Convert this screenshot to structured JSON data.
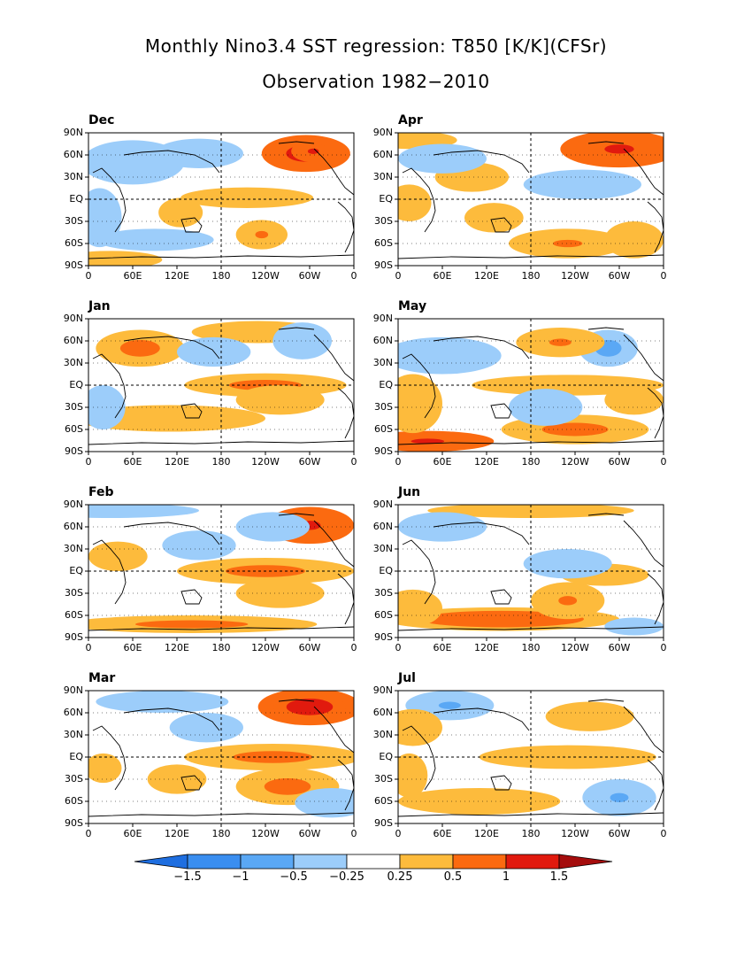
{
  "title_line1": "Monthly Nino3.4 SST regression: T850 [K/K](CFSr)",
  "title_line2": "Observation 1982−2010",
  "chart_data": {
    "type": "heatmap",
    "variable": "T850",
    "units": "K/K",
    "lat_ticks": [
      "90N",
      "60N",
      "30N",
      "EQ",
      "30S",
      "60S",
      "90S"
    ],
    "lon_ticks": [
      "0",
      "60E",
      "120E",
      "180",
      "120W",
      "60W",
      "0"
    ],
    "panels": [
      {
        "label": "Dec",
        "col": 0,
        "row": 0,
        "features": [
          {
            "lon": 295,
            "lat": 62,
            "w": 60,
            "h": 25,
            "v": 1.6
          },
          {
            "lon": 305,
            "lat": 65,
            "w": 30,
            "h": 15,
            "v": 1.2
          },
          {
            "lon": 215,
            "lat": 2,
            "w": 90,
            "h": 14,
            "v": 0.35
          },
          {
            "lon": 235,
            "lat": -48,
            "w": 35,
            "h": 20,
            "v": 0.6
          },
          {
            "lon": 125,
            "lat": -18,
            "w": 30,
            "h": 20,
            "v": 0.4
          },
          {
            "lon": 30,
            "lat": -82,
            "w": 70,
            "h": 12,
            "v": 0.4
          },
          {
            "lon": 60,
            "lat": 50,
            "w": 70,
            "h": 30,
            "v": -0.4
          },
          {
            "lon": 150,
            "lat": 62,
            "w": 60,
            "h": 20,
            "v": -0.3
          },
          {
            "lon": 15,
            "lat": -25,
            "w": 30,
            "h": 40,
            "v": -0.3
          },
          {
            "lon": 90,
            "lat": -55,
            "w": 80,
            "h": 15,
            "v": -0.3
          }
        ]
      },
      {
        "label": "Jan",
        "col": 0,
        "row": 1,
        "features": [
          {
            "lon": 70,
            "lat": 50,
            "w": 60,
            "h": 25,
            "v": 0.7
          },
          {
            "lon": 230,
            "lat": 72,
            "w": 90,
            "h": 15,
            "v": 0.4
          },
          {
            "lon": 240,
            "lat": 0,
            "w": 110,
            "h": 16,
            "v": 0.7
          },
          {
            "lon": 260,
            "lat": -20,
            "w": 60,
            "h": 20,
            "v": 0.4
          },
          {
            "lon": 110,
            "lat": -45,
            "w": 130,
            "h": 18,
            "v": 0.35
          },
          {
            "lon": 290,
            "lat": 60,
            "w": 40,
            "h": 25,
            "v": -0.4
          },
          {
            "lon": 170,
            "lat": 45,
            "w": 50,
            "h": 20,
            "v": -0.3
          },
          {
            "lon": 20,
            "lat": -30,
            "w": 30,
            "h": 30,
            "v": -0.3
          }
        ]
      },
      {
        "label": "Feb",
        "col": 0,
        "row": 2,
        "features": [
          {
            "lon": 300,
            "lat": 62,
            "w": 60,
            "h": 25,
            "v": 1.2
          },
          {
            "lon": 240,
            "lat": 0,
            "w": 120,
            "h": 18,
            "v": 0.7
          },
          {
            "lon": 260,
            "lat": -30,
            "w": 60,
            "h": 20,
            "v": 0.5
          },
          {
            "lon": 140,
            "lat": -72,
            "w": 170,
            "h": 12,
            "v": 0.7
          },
          {
            "lon": 40,
            "lat": 20,
            "w": 40,
            "h": 20,
            "v": 0.3
          },
          {
            "lon": 30,
            "lat": 82,
            "w": 120,
            "h": 10,
            "v": -0.5
          },
          {
            "lon": 250,
            "lat": 60,
            "w": 50,
            "h": 20,
            "v": -0.4
          },
          {
            "lon": 150,
            "lat": 35,
            "w": 50,
            "h": 20,
            "v": -0.3
          }
        ]
      },
      {
        "label": "Mar",
        "col": 0,
        "row": 3,
        "features": [
          {
            "lon": 300,
            "lat": 68,
            "w": 70,
            "h": 25,
            "v": 1.4
          },
          {
            "lon": 250,
            "lat": 0,
            "w": 120,
            "h": 18,
            "v": 0.7
          },
          {
            "lon": 270,
            "lat": -40,
            "w": 70,
            "h": 25,
            "v": 0.7
          },
          {
            "lon": 120,
            "lat": -30,
            "w": 40,
            "h": 20,
            "v": 0.5
          },
          {
            "lon": 20,
            "lat": -15,
            "w": 25,
            "h": 20,
            "v": 0.4
          },
          {
            "lon": 100,
            "lat": 75,
            "w": 90,
            "h": 15,
            "v": -0.4
          },
          {
            "lon": 330,
            "lat": -62,
            "w": 50,
            "h": 20,
            "v": -0.5
          },
          {
            "lon": 160,
            "lat": 40,
            "w": 50,
            "h": 20,
            "v": -0.3
          }
        ]
      },
      {
        "label": "Apr",
        "col": 1,
        "row": 0,
        "features": [
          {
            "lon": 300,
            "lat": 68,
            "w": 80,
            "h": 25,
            "v": 1.3
          },
          {
            "lon": 20,
            "lat": 80,
            "w": 60,
            "h": 12,
            "v": 0.5
          },
          {
            "lon": 100,
            "lat": 30,
            "w": 50,
            "h": 20,
            "v": 0.4
          },
          {
            "lon": 15,
            "lat": -5,
            "w": 30,
            "h": 25,
            "v": 0.5
          },
          {
            "lon": 130,
            "lat": -25,
            "w": 40,
            "h": 20,
            "v": 0.4
          },
          {
            "lon": 230,
            "lat": -60,
            "w": 80,
            "h": 20,
            "v": 0.6
          },
          {
            "lon": 320,
            "lat": -55,
            "w": 40,
            "h": 25,
            "v": 0.5
          },
          {
            "lon": 60,
            "lat": 55,
            "w": 60,
            "h": 20,
            "v": -0.4
          },
          {
            "lon": 250,
            "lat": 20,
            "w": 80,
            "h": 20,
            "v": -0.3
          }
        ]
      },
      {
        "label": "May",
        "col": 1,
        "row": 1,
        "features": [
          {
            "lon": 285,
            "lat": 50,
            "w": 40,
            "h": 25,
            "v": -0.7
          },
          {
            "lon": 220,
            "lat": 58,
            "w": 60,
            "h": 20,
            "v": 0.6
          },
          {
            "lon": 230,
            "lat": 0,
            "w": 130,
            "h": 14,
            "v": 0.5
          },
          {
            "lon": 40,
            "lat": -76,
            "w": 90,
            "h": 14,
            "v": 1.2
          },
          {
            "lon": 240,
            "lat": -60,
            "w": 100,
            "h": 20,
            "v": 0.8
          },
          {
            "lon": 20,
            "lat": -25,
            "w": 40,
            "h": 40,
            "v": 0.5
          },
          {
            "lon": 320,
            "lat": -20,
            "w": 40,
            "h": 20,
            "v": 0.5
          },
          {
            "lon": 60,
            "lat": 40,
            "w": 80,
            "h": 25,
            "v": -0.4
          },
          {
            "lon": 200,
            "lat": -30,
            "w": 50,
            "h": 25,
            "v": -0.4
          }
        ]
      },
      {
        "label": "Jun",
        "col": 1,
        "row": 2,
        "features": [
          {
            "lon": 140,
            "lat": -65,
            "w": 160,
            "h": 16,
            "v": 1.0
          },
          {
            "lon": 230,
            "lat": -40,
            "w": 50,
            "h": 25,
            "v": 0.6
          },
          {
            "lon": 280,
            "lat": -5,
            "w": 60,
            "h": 15,
            "v": 0.5
          },
          {
            "lon": 180,
            "lat": 82,
            "w": 140,
            "h": 10,
            "v": 0.5
          },
          {
            "lon": 20,
            "lat": -50,
            "w": 40,
            "h": 25,
            "v": 0.4
          },
          {
            "lon": 60,
            "lat": 60,
            "w": 60,
            "h": 20,
            "v": -0.4
          },
          {
            "lon": 230,
            "lat": 10,
            "w": 60,
            "h": 20,
            "v": -0.3
          },
          {
            "lon": 320,
            "lat": -75,
            "w": 40,
            "h": 12,
            "v": -0.5
          }
        ]
      },
      {
        "label": "Jul",
        "col": 1,
        "row": 3,
        "features": [
          {
            "lon": 70,
            "lat": 70,
            "w": 60,
            "h": 20,
            "v": -0.6
          },
          {
            "lon": 20,
            "lat": 40,
            "w": 40,
            "h": 25,
            "v": 0.4
          },
          {
            "lon": 230,
            "lat": 0,
            "w": 120,
            "h": 16,
            "v": 0.4
          },
          {
            "lon": 110,
            "lat": -60,
            "w": 110,
            "h": 18,
            "v": 0.5
          },
          {
            "lon": 15,
            "lat": -25,
            "w": 25,
            "h": 30,
            "v": 0.5
          },
          {
            "lon": 300,
            "lat": -55,
            "w": 50,
            "h": 25,
            "v": -0.6
          },
          {
            "lon": 260,
            "lat": 55,
            "w": 60,
            "h": 20,
            "v": 0.3
          }
        ]
      }
    ],
    "colorbar": {
      "labels": [
        "−1.5",
        "−1",
        "−0.5",
        "−0.25",
        "0.25",
        "0.5",
        "1",
        "1.5"
      ],
      "levels": [
        -1.5,
        -1,
        -0.5,
        -0.25,
        0.25,
        0.5,
        1,
        1.5
      ],
      "colors": [
        "#1e6ee0",
        "#3a8ef0",
        "#5aa8f5",
        "#9ccdfa",
        "#ffffff",
        "#fdbb3c",
        "#fb6a10",
        "#e11a0e",
        "#a50d0d"
      ]
    }
  }
}
